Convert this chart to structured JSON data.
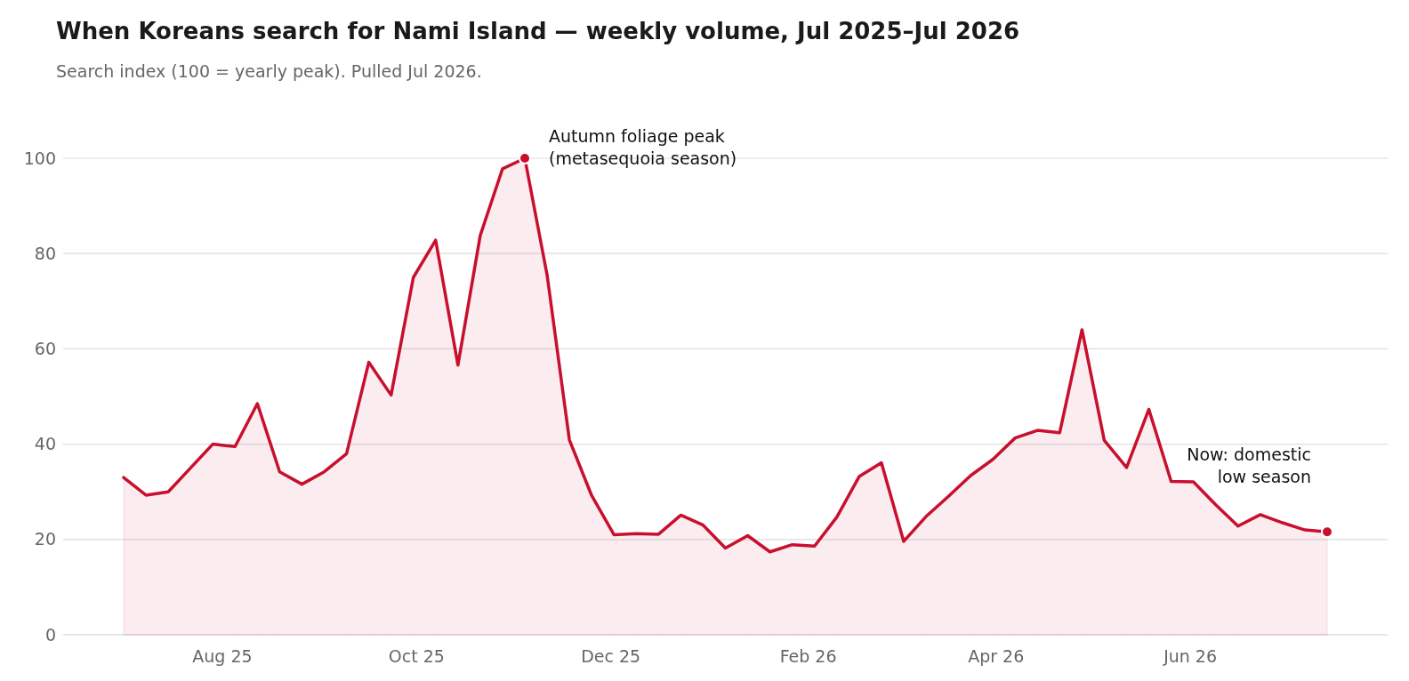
{
  "chart_data": {
    "type": "area",
    "title": "When Koreans search for Nami Island — weekly volume, Jul 2025–Jul 2026",
    "subtitle": "Search index (100 = yearly peak). Pulled Jul 2026.",
    "x": [
      "2025-07-01",
      "2025-07-08",
      "2025-07-15",
      "2025-07-22",
      "2025-07-29",
      "2025-08-05",
      "2025-08-12",
      "2025-08-19",
      "2025-08-26",
      "2025-09-02",
      "2025-09-09",
      "2025-09-16",
      "2025-09-23",
      "2025-09-30",
      "2025-10-07",
      "2025-10-14",
      "2025-10-21",
      "2025-10-28",
      "2025-11-04",
      "2025-11-11",
      "2025-11-18",
      "2025-11-25",
      "2025-12-02",
      "2025-12-09",
      "2025-12-16",
      "2025-12-23",
      "2025-12-30",
      "2026-01-06",
      "2026-01-13",
      "2026-01-20",
      "2026-01-27",
      "2026-02-03",
      "2026-02-10",
      "2026-02-17",
      "2026-02-24",
      "2026-03-03",
      "2026-03-10",
      "2026-03-17",
      "2026-03-24",
      "2026-03-31",
      "2026-04-07",
      "2026-04-14",
      "2026-04-21",
      "2026-04-28",
      "2026-05-05",
      "2026-05-12",
      "2026-05-19",
      "2026-05-26",
      "2026-06-02",
      "2026-06-09",
      "2026-06-16",
      "2026-06-23",
      "2026-06-30",
      "2026-07-07",
      "2026-07-14"
    ],
    "series": [
      {
        "color": "#c8102e",
        "values": [
          33,
          29.3,
          30,
          35,
          40,
          39.5,
          48.5,
          34.2,
          31.6,
          34.2,
          38,
          57.2,
          50.3,
          75,
          82.8,
          56.6,
          83.8,
          97.8,
          100,
          75.5,
          40.9,
          29.2,
          21,
          21.2,
          21.1,
          25.1,
          23,
          18.2,
          20.8,
          17.4,
          18.9,
          18.6,
          24.7,
          33.2,
          36.1,
          19.6,
          24.8,
          29,
          33.4,
          36.8,
          41.3,
          42.9,
          42.4,
          64,
          40.8,
          35.1,
          47.3,
          32.2,
          32.1,
          27.3,
          22.8,
          25.2,
          23.5,
          22,
          21.6
        ]
      }
    ],
    "xlim": [
      "2025-06-12",
      "2026-08-02"
    ],
    "xticks": [
      {
        "value": "2025-08-01",
        "label": "Aug 25"
      },
      {
        "value": "2025-10-01",
        "label": "Oct 25"
      },
      {
        "value": "2025-12-01",
        "label": "Dec 25"
      },
      {
        "value": "2026-02-01",
        "label": "Feb 26"
      },
      {
        "value": "2026-04-01",
        "label": "Apr 26"
      },
      {
        "value": "2026-06-01",
        "label": "Jun 26"
      }
    ],
    "ylim": [
      0,
      100
    ],
    "yticks": [
      0,
      20,
      40,
      60,
      80,
      100
    ],
    "grid": "y",
    "marker": "none",
    "line_style": "solid",
    "annotations": [
      {
        "text": "Autumn foliage peak\n(metasequoia season)",
        "x": "2025-11-04",
        "y": 100
      },
      {
        "text": "Now: domestic\nlow season",
        "x": "2026-07-14",
        "y": 21.6
      }
    ]
  }
}
